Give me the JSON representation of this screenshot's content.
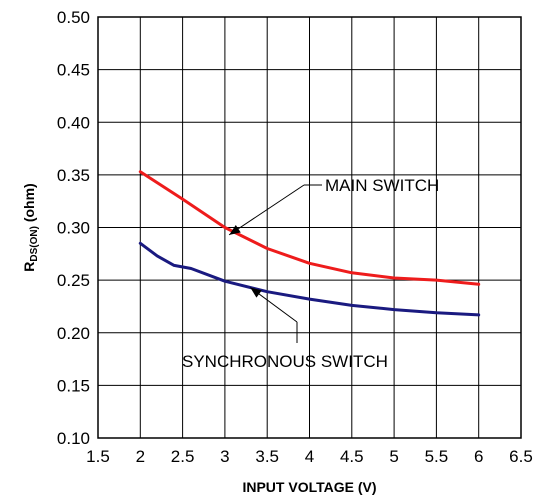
{
  "chart_data": {
    "type": "line",
    "xlabel": "INPUT VOLTAGE (V)",
    "ylabel": {
      "main": "R",
      "subscript": "DS(ON)",
      "unit": " (ohm)"
    },
    "xlim": [
      1.5,
      6.5
    ],
    "ylim": [
      0.1,
      0.5
    ],
    "x_ticks": [
      "1.5",
      "2",
      "2.5",
      "3",
      "3.5",
      "4",
      "4.5",
      "5",
      "5.5",
      "6",
      "6.5"
    ],
    "y_ticks": [
      "0.10",
      "0.15",
      "0.20",
      "0.25",
      "0.30",
      "0.35",
      "0.40",
      "0.45",
      "0.50"
    ],
    "grid": true,
    "series": [
      {
        "name": "MAIN SWITCH",
        "color": "#ee1c1c",
        "x": [
          2.0,
          2.5,
          3.0,
          3.5,
          4.0,
          4.5,
          5.0,
          5.5,
          6.0
        ],
        "y": [
          0.353,
          0.327,
          0.3,
          0.28,
          0.266,
          0.257,
          0.252,
          0.25,
          0.246
        ]
      },
      {
        "name": "SYNCHRONOUS SWITCH",
        "color": "#1a1a80",
        "x": [
          2.0,
          2.2,
          2.4,
          2.6,
          3.0,
          3.5,
          4.0,
          4.5,
          5.0,
          5.5,
          6.0
        ],
        "y": [
          0.285,
          0.273,
          0.264,
          0.261,
          0.249,
          0.239,
          0.232,
          0.226,
          0.222,
          0.219,
          0.217
        ]
      }
    ],
    "annotations": [
      {
        "text": "MAIN SWITCH",
        "target": [
          3.05,
          0.293
        ]
      },
      {
        "text": "SYNCHRONOUS SWITCH",
        "target": [
          3.3,
          0.243
        ]
      }
    ]
  }
}
